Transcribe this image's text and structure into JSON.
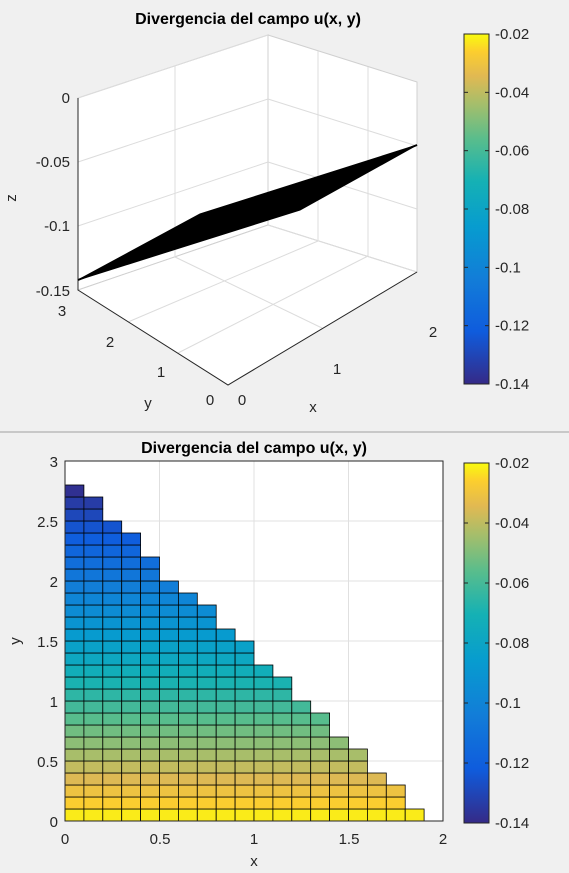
{
  "chart_data": [
    {
      "type": "surface",
      "title": "Divergencia del campo u(x, y)",
      "xlabel": "x",
      "ylabel": "y",
      "zlabel": "z",
      "x_ticks": [
        "0",
        "1",
        "2"
      ],
      "y_ticks": [
        "0",
        "1",
        "2",
        "3"
      ],
      "z_ticks": [
        "0",
        "-0.05",
        "-0.1",
        "-0.15"
      ],
      "xlim": [
        0,
        2
      ],
      "ylim": [
        0,
        3
      ],
      "zlim": [
        -0.15,
        0
      ],
      "surface_corners": [
        {
          "x": 0,
          "y": 2.8,
          "z": -0.14
        },
        {
          "x": 1.9,
          "y": 0,
          "z": -0.02
        }
      ],
      "colorbar": {
        "ticks": [
          "-0.02",
          "-0.04",
          "-0.06",
          "-0.08",
          "-0.1",
          "-0.12",
          "-0.14"
        ],
        "range": [
          -0.14,
          -0.02
        ]
      },
      "grid": true,
      "colormap": "parula"
    },
    {
      "type": "heatmap",
      "title": "Divergencia del campo u(x, y)",
      "xlabel": "x",
      "ylabel": "y",
      "x_ticks": [
        "0",
        "0.5",
        "1",
        "1.5",
        "2"
      ],
      "y_ticks": [
        "0",
        "0.5",
        "1",
        "1.5",
        "2",
        "2.5",
        "3"
      ],
      "xlim": [
        0,
        2
      ],
      "ylim": [
        0,
        3
      ],
      "cell_width": 0.1,
      "cell_height": 0.1,
      "region": "x + 2*y/3 < 2 (triangle x>=0, y>=0)",
      "column_heights_y": [
        2.8,
        2.7,
        2.5,
        2.4,
        2.2,
        2.0,
        1.9,
        1.8,
        1.6,
        1.5,
        1.3,
        1.2,
        1.0,
        0.9,
        0.7,
        0.6,
        0.4,
        0.3,
        0.1
      ],
      "value_at_y0": -0.02,
      "value_at_y2.8": -0.14,
      "colorbar": {
        "ticks": [
          "-0.02",
          "-0.04",
          "-0.06",
          "-0.08",
          "-0.1",
          "-0.12",
          "-0.14"
        ],
        "range": [
          -0.14,
          -0.02
        ]
      },
      "grid": true,
      "colormap": "parula"
    }
  ]
}
